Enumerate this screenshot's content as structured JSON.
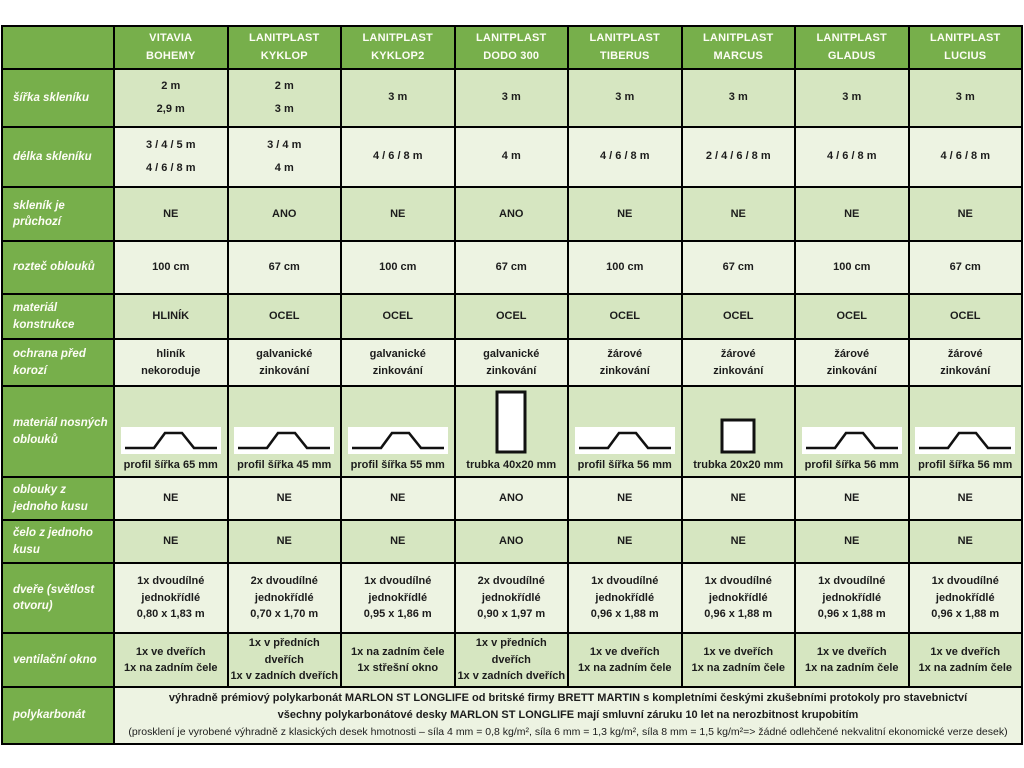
{
  "colors": {
    "green": "#77af4b",
    "row_a": "#d6e6c1",
    "row_b": "#edf3e2",
    "grid_line": "#000000",
    "cell_text": "#1c1c1c",
    "header_text": "#ffffff"
  },
  "table": {
    "columns": [
      [
        "VITAVIA",
        "BOHEMY"
      ],
      [
        "LANITPLAST",
        "KYKLOP"
      ],
      [
        "LANITPLAST",
        "KYKLOP2"
      ],
      [
        "LANITPLAST",
        "DODO 300"
      ],
      [
        "LANITPLAST",
        "TIBERUS"
      ],
      [
        "LANITPLAST",
        "MARCUS"
      ],
      [
        "LANITPLAST",
        "GLADUS"
      ],
      [
        "LANITPLAST",
        "LUCIUS"
      ]
    ],
    "rows": [
      {
        "label": "šířka skleníku",
        "type": "text",
        "spread": true,
        "values": [
          [
            "2 m",
            "2,9 m"
          ],
          [
            "2 m",
            "3 m"
          ],
          [
            "3 m"
          ],
          [
            "3 m"
          ],
          [
            "3 m"
          ],
          [
            "3 m"
          ],
          [
            "3 m"
          ],
          [
            "3 m"
          ]
        ]
      },
      {
        "label": "délka skleníku",
        "type": "text",
        "spread": true,
        "values": [
          [
            "3 / 4 / 5 m",
            "4 / 6 / 8 m"
          ],
          [
            "3 / 4 m",
            "4 m"
          ],
          [
            "4 / 6 / 8 m"
          ],
          [
            "4 m"
          ],
          [
            "4 / 6 / 8 m"
          ],
          [
            "2 / 4 / 6 / 8 m"
          ],
          [
            "4 / 6 / 8 m"
          ],
          [
            "4 / 6 / 8 m"
          ]
        ]
      },
      {
        "label": "skleník je průchozí",
        "type": "text",
        "values": [
          [
            "NE"
          ],
          [
            "ANO"
          ],
          [
            "NE"
          ],
          [
            "ANO"
          ],
          [
            "NE"
          ],
          [
            "NE"
          ],
          [
            "NE"
          ],
          [
            "NE"
          ]
        ]
      },
      {
        "label": "rozteč oblouků",
        "type": "text",
        "values": [
          [
            "100 cm"
          ],
          [
            "67 cm"
          ],
          [
            "100 cm"
          ],
          [
            "67 cm"
          ],
          [
            "100 cm"
          ],
          [
            "67 cm"
          ],
          [
            "100 cm"
          ],
          [
            "67 cm"
          ]
        ]
      },
      {
        "label": "materiál konstrukce",
        "type": "text",
        "values": [
          [
            "HLINÍK"
          ],
          [
            "OCEL"
          ],
          [
            "OCEL"
          ],
          [
            "OCEL"
          ],
          [
            "OCEL"
          ],
          [
            "OCEL"
          ],
          [
            "OCEL"
          ],
          [
            "OCEL"
          ]
        ]
      },
      {
        "label": "ochrana před korozí",
        "type": "text",
        "values": [
          [
            "hliník",
            "nekoroduje"
          ],
          [
            "galvanické",
            "zinkování"
          ],
          [
            "galvanické",
            "zinkování"
          ],
          [
            "galvanické",
            "zinkování"
          ],
          [
            "žárové",
            "zinkování"
          ],
          [
            "žárové",
            "zinkování"
          ],
          [
            "žárové",
            "zinkování"
          ],
          [
            "žárové",
            "zinkování"
          ]
        ]
      },
      {
        "label": "materiál nosných oblouků",
        "type": "profile",
        "values": [
          {
            "shape": "hat",
            "caption": "profil šířka 65 mm"
          },
          {
            "shape": "hat",
            "caption": "profil šířka 45 mm"
          },
          {
            "shape": "hat",
            "caption": "profil šířka 55 mm"
          },
          {
            "shape": "tube-tall",
            "caption": "trubka 40x20 mm"
          },
          {
            "shape": "hat",
            "caption": "profil šířka 56 mm"
          },
          {
            "shape": "tube-square",
            "caption": "trubka 20x20 mm"
          },
          {
            "shape": "hat",
            "caption": "profil šířka 56 mm"
          },
          {
            "shape": "hat",
            "caption": "profil šířka 56 mm"
          }
        ]
      },
      {
        "label": "oblouky z jednoho kusu",
        "type": "text",
        "values": [
          [
            "NE"
          ],
          [
            "NE"
          ],
          [
            "NE"
          ],
          [
            "ANO"
          ],
          [
            "NE"
          ],
          [
            "NE"
          ],
          [
            "NE"
          ],
          [
            "NE"
          ]
        ]
      },
      {
        "label": "čelo z jednoho kusu",
        "type": "text",
        "values": [
          [
            "NE"
          ],
          [
            "NE"
          ],
          [
            "NE"
          ],
          [
            "ANO"
          ],
          [
            "NE"
          ],
          [
            "NE"
          ],
          [
            "NE"
          ],
          [
            "NE"
          ]
        ]
      },
      {
        "label": "dveře (světlost otvoru)",
        "type": "text",
        "values": [
          [
            "1x dvoudílné",
            "jednokřídlé",
            "0,80 x 1,83 m"
          ],
          [
            "2x dvoudílné",
            "jednokřídlé",
            "0,70 x 1,70 m"
          ],
          [
            "1x dvoudílné",
            "jednokřídlé",
            "0,95 x 1,86 m"
          ],
          [
            "2x dvoudílné",
            "jednokřídlé",
            "0,90 x 1,97 m"
          ],
          [
            "1x dvoudílné",
            "jednokřídlé",
            "0,96 x 1,88 m"
          ],
          [
            "1x dvoudílné",
            "jednokřídlé",
            "0,96 x 1,88 m"
          ],
          [
            "1x dvoudílné",
            "jednokřídlé",
            "0,96 x 1,88 m"
          ],
          [
            "1x dvoudílné",
            "jednokřídlé",
            "0,96 x 1,88 m"
          ]
        ]
      },
      {
        "label": "ventilační okno",
        "type": "text",
        "values": [
          [
            "1x ve dveřích",
            "1x na zadním čele"
          ],
          [
            "1x v předních dveřích",
            "1x v zadních dveřích"
          ],
          [
            "1x na zadním čele",
            "1x střešní okno"
          ],
          [
            "1x v předních dveřích",
            "1x v zadních dveřích"
          ],
          [
            "1x ve dveřích",
            "1x na zadním čele"
          ],
          [
            "1x ve dveřích",
            "1x na zadním čele"
          ],
          [
            "1x ve dveřích",
            "1x na zadním čele"
          ],
          [
            "1x ve dveřích",
            "1x na zadním čele"
          ]
        ]
      },
      {
        "label": "polykarbonát",
        "type": "span",
        "lines": [
          {
            "text": "výhradně prémiový polykarbonát MARLON ST LONGLIFE od britské firmy BRETT MARTIN s kompletními českými zkušebními protokoly pro stavebnictví",
            "bold": true
          },
          {
            "text": "všechny polykarbonátové desky MARLON ST LONGLIFE mají smluvní záruku 10 let na nerozbitnost krupobitím",
            "bold": true
          },
          {
            "text": "(prosklení je vyrobené výhradně z klasických desek hmotnosti – síla 4 mm = 0,8 kg/m², síla 6 mm = 1,3 kg/m², síla 8 mm = 1,5 kg/m²=> žádné odlehčené nekvalitní ekonomické verze desek)",
            "bold": false
          }
        ]
      }
    ]
  }
}
